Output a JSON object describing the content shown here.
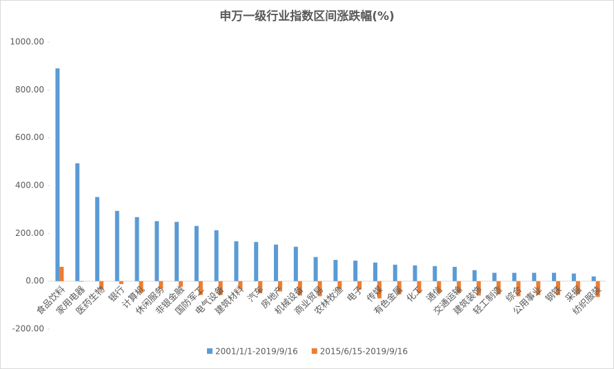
{
  "chart_data": {
    "type": "bar",
    "title": "申万一级行业指数区间涨跌幅(%)",
    "categories": [
      "食品饮料",
      "家用电器",
      "医药生物",
      "银行",
      "计算机",
      "休闲服务",
      "非银金融",
      "国防军工",
      "电气设备",
      "建筑材料",
      "汽车",
      "房地产",
      "机械设备",
      "商业贸易",
      "农林牧渔",
      "电子",
      "传媒",
      "有色金属",
      "化工",
      "通信",
      "交通运输",
      "建筑装饰",
      "轻工制造",
      "综合",
      "公用事业",
      "钢铁",
      "采掘",
      "纺织服装"
    ],
    "series": [
      {
        "name": "2001/1/1-2019/9/16",
        "color": "#5b9bd5",
        "values": [
          890,
          493,
          352,
          294,
          268,
          251,
          248,
          231,
          213,
          167,
          164,
          153,
          144,
          101,
          89,
          86,
          78,
          69,
          66,
          63,
          60,
          46,
          35,
          35,
          35,
          35,
          32,
          20
        ]
      },
      {
        "name": "2015/6/15-2019/9/16",
        "color": "#ed7d31",
        "values": [
          60,
          -2,
          -35,
          -12,
          -49,
          -32,
          -23,
          -58,
          -58,
          -32,
          -49,
          -43,
          -60,
          -63,
          -32,
          -35,
          -72,
          -55,
          -49,
          -49,
          -49,
          -60,
          -55,
          -63,
          -58,
          -58,
          -55,
          -66
        ]
      }
    ],
    "ylim": [
      -200,
      1000
    ],
    "yticks": [
      {
        "value": -200,
        "label": "-200.00"
      },
      {
        "value": 0,
        "label": "0.00"
      },
      {
        "value": 200,
        "label": "200.00"
      },
      {
        "value": 400,
        "label": "400.00"
      },
      {
        "value": 600,
        "label": "600.00"
      },
      {
        "value": 800,
        "label": "800.00"
      },
      {
        "value": 1000,
        "label": "1000.00"
      }
    ],
    "legend": "bottom"
  }
}
